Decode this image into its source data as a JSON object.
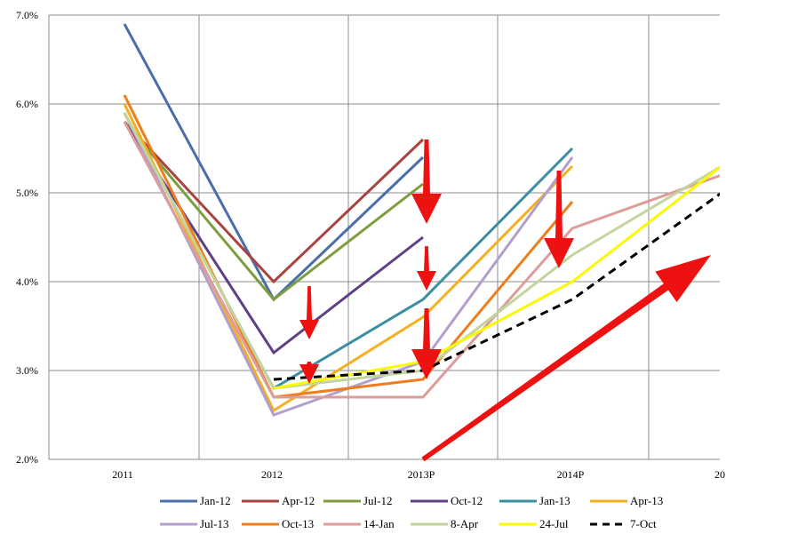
{
  "chart_data": {
    "type": "line",
    "categories": [
      "2011",
      "2012",
      "2013P",
      "2014P",
      "20"
    ],
    "y_tick_labels": [
      "2.0%",
      "3.0%",
      "4.0%",
      "5.0%",
      "6.0%",
      "7.0%"
    ],
    "ylim": [
      2.0,
      7.0
    ],
    "grid": true,
    "legend_placement": "bottom",
    "series": [
      {
        "name": "Jan-12",
        "color": "#4a6ea9",
        "values": [
          6.9,
          3.8,
          5.4,
          null,
          null
        ]
      },
      {
        "name": "Apr-12",
        "color": "#a9433f",
        "values": [
          5.8,
          4.0,
          5.6,
          null,
          null
        ]
      },
      {
        "name": "Jul-12",
        "color": "#7e9d3f",
        "values": [
          5.8,
          3.8,
          5.1,
          null,
          null
        ]
      },
      {
        "name": "Oct-12",
        "color": "#5f3f86",
        "values": [
          5.8,
          3.2,
          4.5,
          null,
          null
        ]
      },
      {
        "name": "Jan-13",
        "color": "#3b8fa0",
        "values": [
          5.9,
          2.8,
          3.8,
          5.5,
          null
        ]
      },
      {
        "name": "Apr-13",
        "color": "#f7ae1f",
        "values": [
          6.0,
          2.55,
          3.6,
          5.3,
          null
        ]
      },
      {
        "name": "Jul-13",
        "color": "#b29fcb",
        "values": [
          5.9,
          2.5,
          3.1,
          5.4,
          null
        ]
      },
      {
        "name": "Oct-13",
        "color": "#ef7d1d",
        "values": [
          6.1,
          2.7,
          2.9,
          4.9,
          null
        ]
      },
      {
        "name": "14-Jan",
        "color": "#dc9d9a",
        "values": [
          5.8,
          2.7,
          2.7,
          4.6,
          5.2
        ]
      },
      {
        "name": "8-Apr",
        "color": "#c3d59e",
        "values": [
          5.9,
          2.8,
          3.0,
          4.3,
          5.3
        ]
      },
      {
        "name": "24-Jul",
        "color": "#fafa00",
        "values": [
          null,
          2.8,
          3.1,
          4.0,
          5.3
        ]
      },
      {
        "name": "7-Oct",
        "color": "#000000",
        "dashed": true,
        "values": [
          null,
          2.9,
          3.0,
          3.8,
          5.0
        ]
      }
    ],
    "annotations": [
      {
        "type": "arrow-down",
        "color": "#ee1111",
        "x": 1,
        "y_from": 3.95,
        "y_to": 3.35
      },
      {
        "type": "arrow-down",
        "color": "#ee1111",
        "x": 1,
        "y_from": 3.1,
        "y_to": 2.85
      },
      {
        "type": "arrow-down",
        "color": "#ee1111",
        "x": 2,
        "y_from": 5.6,
        "y_to": 4.65
      },
      {
        "type": "arrow-down",
        "color": "#ee1111",
        "x": 2,
        "y_from": 4.4,
        "y_to": 3.9
      },
      {
        "type": "arrow-down",
        "color": "#ee1111",
        "x": 2,
        "y_from": 3.7,
        "y_to": 2.9
      },
      {
        "type": "arrow-down",
        "color": "#ee1111",
        "x": 3,
        "y_from": 5.25,
        "y_to": 4.15
      },
      {
        "type": "arrow-up",
        "color": "#ee1111",
        "x_from": 2.0,
        "y_from": 2.3,
        "x_to": 3.95,
        "y_to": 4.3
      }
    ]
  }
}
